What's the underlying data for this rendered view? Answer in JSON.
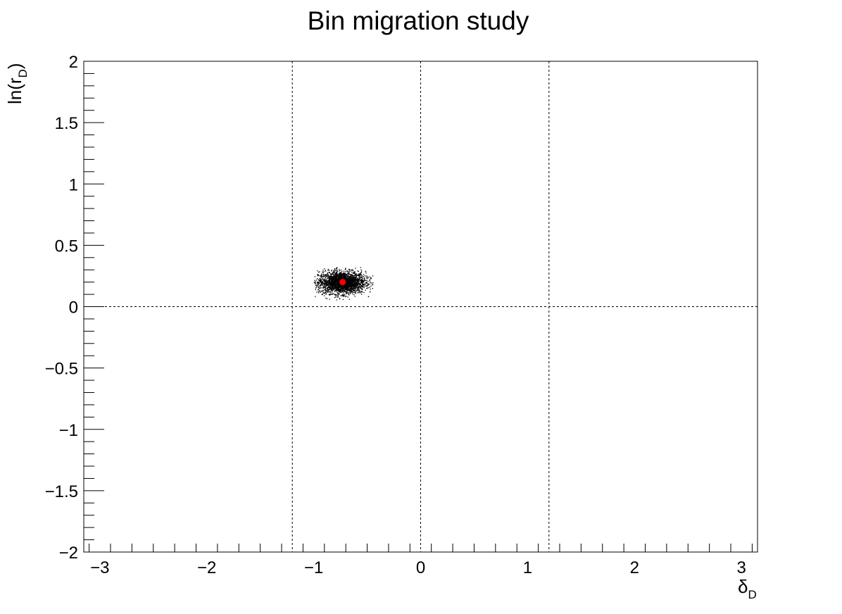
{
  "chart_data": {
    "type": "scatter",
    "title": "Bin migration study",
    "xlabel": "δ",
    "xlabel_sub": "D",
    "ylabel": "ln(r",
    "ylabel_sub": "D",
    "ylabel_close": ")",
    "xlim": [
      -3.15,
      3.15
    ],
    "ylim": [
      -2,
      2
    ],
    "x_ticks": [
      -3,
      -2,
      -1,
      0,
      1,
      2,
      3
    ],
    "x_tick_labels": [
      "−3",
      "−2",
      "−1",
      "0",
      "1",
      "2",
      "3"
    ],
    "y_ticks": [
      -2,
      -1.5,
      -1,
      -0.5,
      0,
      0.5,
      1,
      1.5,
      2
    ],
    "y_tick_labels": [
      "−2",
      "−1.5",
      "−1",
      "−0.5",
      "0",
      "0.5",
      "1",
      "1.5",
      "2"
    ],
    "grid": false,
    "reference_lines": {
      "vertical": [
        -1.2,
        0,
        1.2
      ],
      "horizontal": [
        0
      ],
      "style": "dashed"
    },
    "series": [
      {
        "kind": "cloud",
        "color": "#000000",
        "center": [
          -0.74,
          0.2
        ],
        "spread": [
          0.11,
          0.045
        ],
        "x_range": [
          -1.0,
          -0.45
        ],
        "y_range": [
          0.05,
          0.33
        ]
      },
      {
        "kind": "marker",
        "color": "#ff0000",
        "x": -0.73,
        "y": 0.2
      }
    ]
  }
}
